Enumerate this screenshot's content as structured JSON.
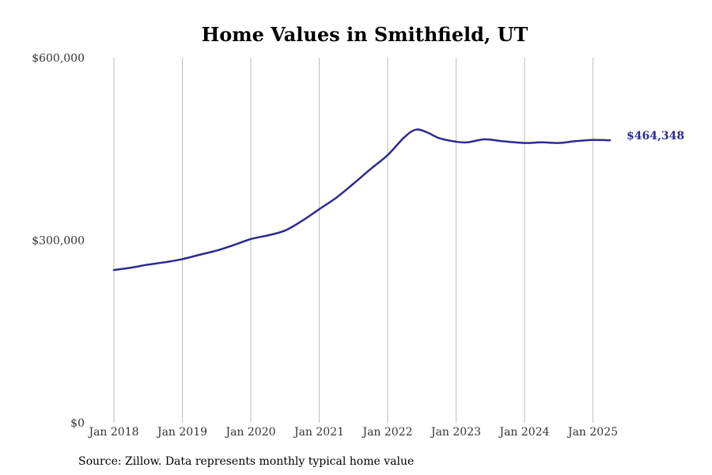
{
  "chart_data": {
    "type": "line",
    "title": "Home Values in Smithfield, UT",
    "xlabel": "",
    "ylabel": "",
    "x_ticks": [
      "Jan 2018",
      "Jan 2019",
      "Jan 2020",
      "Jan 2021",
      "Jan 2022",
      "Jan 2023",
      "Jan 2024",
      "Jan 2025"
    ],
    "y_ticks": [
      {
        "value": 0,
        "label": "$0"
      },
      {
        "value": 300000,
        "label": "$300,000"
      },
      {
        "value": 600000,
        "label": "$600,000"
      }
    ],
    "ylim": [
      0,
      600000
    ],
    "xlim": [
      "2018-01",
      "2025-12"
    ],
    "grid": "vertical",
    "color": "#2e2a8f",
    "end_label": "$464,348",
    "series": [
      {
        "values": [
          {
            "x": "2018-01",
            "y": 251000
          },
          {
            "x": "2018-04",
            "y": 255000
          },
          {
            "x": "2018-07",
            "y": 260000
          },
          {
            "x": "2018-10",
            "y": 264000
          },
          {
            "x": "2019-01",
            "y": 269000
          },
          {
            "x": "2019-04",
            "y": 276000
          },
          {
            "x": "2019-07",
            "y": 283000
          },
          {
            "x": "2019-10",
            "y": 292000
          },
          {
            "x": "2020-01",
            "y": 302000
          },
          {
            "x": "2020-04",
            "y": 308000
          },
          {
            "x": "2020-07",
            "y": 316000
          },
          {
            "x": "2020-10",
            "y": 332000
          },
          {
            "x": "2021-01",
            "y": 351000
          },
          {
            "x": "2021-04",
            "y": 370000
          },
          {
            "x": "2021-07",
            "y": 393000
          },
          {
            "x": "2021-10",
            "y": 417000
          },
          {
            "x": "2022-01",
            "y": 440000
          },
          {
            "x": "2022-04",
            "y": 470000
          },
          {
            "x": "2022-06",
            "y": 482000
          },
          {
            "x": "2022-08",
            "y": 477000
          },
          {
            "x": "2022-10",
            "y": 468000
          },
          {
            "x": "2023-01",
            "y": 462000
          },
          {
            "x": "2023-03",
            "y": 461000
          },
          {
            "x": "2023-06",
            "y": 466000
          },
          {
            "x": "2023-09",
            "y": 463000
          },
          {
            "x": "2024-01",
            "y": 460000
          },
          {
            "x": "2024-04",
            "y": 461000
          },
          {
            "x": "2024-07",
            "y": 460000
          },
          {
            "x": "2024-10",
            "y": 463000
          },
          {
            "x": "2025-01",
            "y": 465000
          },
          {
            "x": "2025-04",
            "y": 464348
          }
        ]
      }
    ]
  },
  "source_note": "Source: Zillow. Data represents monthly typical home value"
}
